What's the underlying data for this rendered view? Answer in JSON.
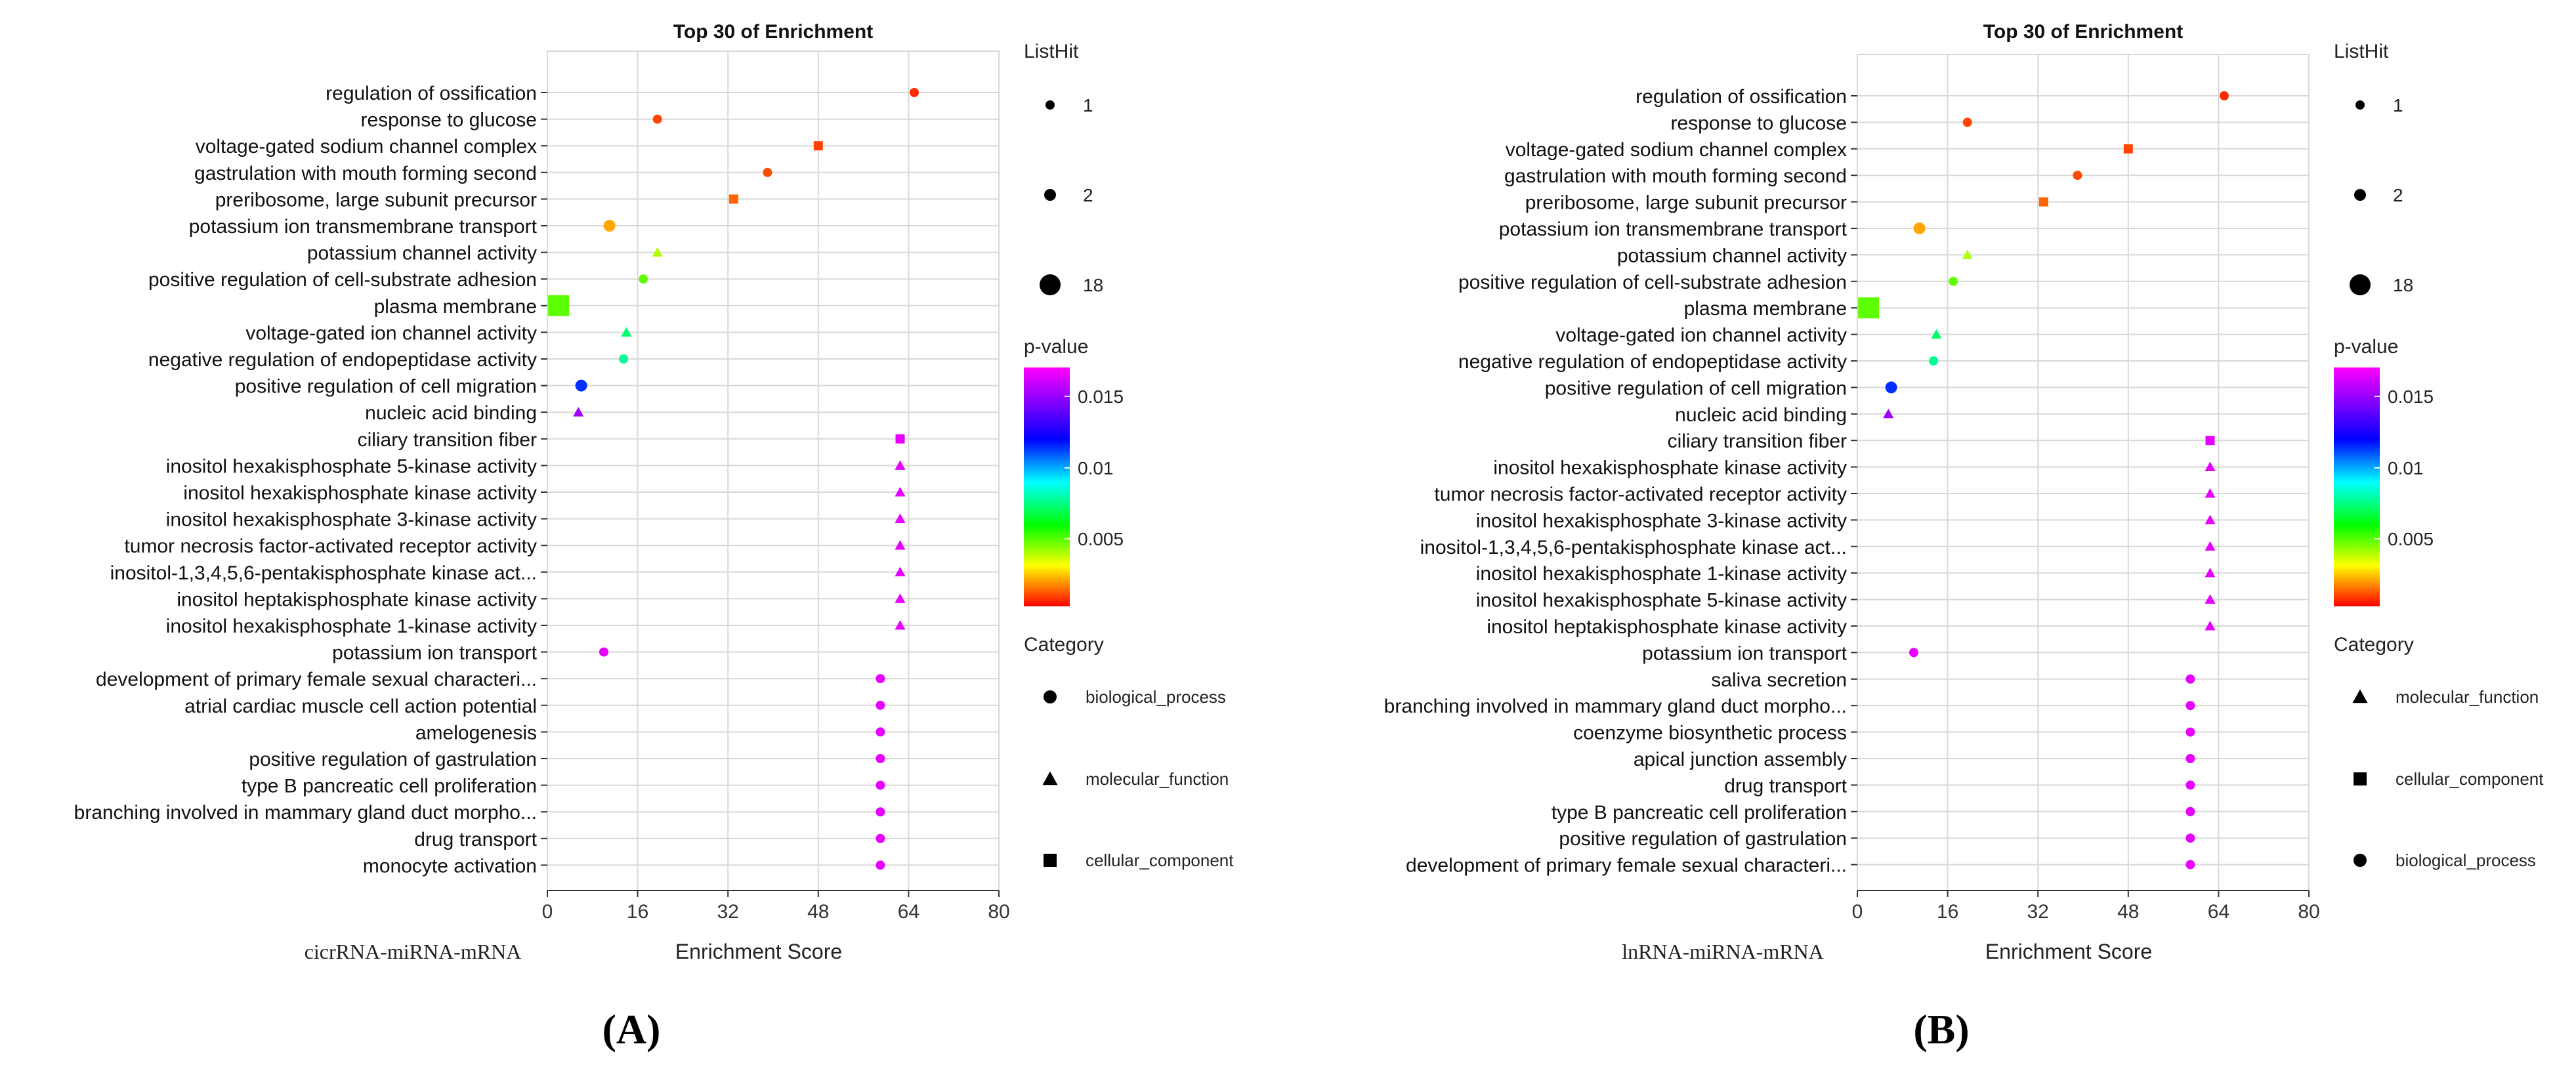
{
  "chart_data": [
    {
      "type": "scatter",
      "panel_label": "(A)",
      "title": "Top 30 of  Enrichment",
      "xlabel": "Enrichment Score",
      "sublabel": "cicrRNA-miRNA-mRNA",
      "xlim": [
        0,
        80
      ],
      "xticks": [
        0,
        16,
        32,
        48,
        64,
        80
      ],
      "grid": true,
      "size_legend": {
        "title": "ListHit",
        "entries": [
          "1",
          "2",
          "18"
        ]
      },
      "color_legend": {
        "title": "p-value",
        "ticks": [
          "0.015",
          "0.01",
          "0.005"
        ]
      },
      "category_legend": {
        "title": "Category",
        "entries": [
          {
            "label": "biological_process",
            "shape": "circle"
          },
          {
            "label": "molecular_function",
            "shape": "triangle"
          },
          {
            "label": "cellular_component",
            "shape": "square"
          }
        ]
      },
      "terms": [
        {
          "term": "regulation of ossification",
          "score": 65,
          "pvalue": 0.0005,
          "hits": 1,
          "category": "biological_process"
        },
        {
          "term": "response to glucose",
          "score": 19.5,
          "pvalue": 0.0008,
          "hits": 1,
          "category": "biological_process"
        },
        {
          "term": "voltage-gated sodium channel complex",
          "score": 48,
          "pvalue": 0.0008,
          "hits": 1,
          "category": "cellular_component"
        },
        {
          "term": "gastrulation with mouth forming second",
          "score": 39,
          "pvalue": 0.0009,
          "hits": 1,
          "category": "biological_process"
        },
        {
          "term": "preribosome, large subunit precursor",
          "score": 33,
          "pvalue": 0.0012,
          "hits": 1,
          "category": "cellular_component"
        },
        {
          "term": "potassium ion transmembrane transport",
          "score": 11,
          "pvalue": 0.002,
          "hits": 2,
          "category": "biological_process"
        },
        {
          "term": "potassium channel activity",
          "score": 19.5,
          "pvalue": 0.004,
          "hits": 1,
          "category": "molecular_function"
        },
        {
          "term": "positive regulation of cell-substrate adhesion",
          "score": 17,
          "pvalue": 0.005,
          "hits": 1,
          "category": "biological_process"
        },
        {
          "term": "plasma membrane",
          "score": 2,
          "pvalue": 0.005,
          "hits": 18,
          "category": "cellular_component"
        },
        {
          "term": "voltage-gated ion channel activity",
          "score": 14,
          "pvalue": 0.0075,
          "hits": 1,
          "category": "molecular_function"
        },
        {
          "term": "negative regulation of endopeptidase activity",
          "score": 13.5,
          "pvalue": 0.008,
          "hits": 1,
          "category": "biological_process"
        },
        {
          "term": "positive regulation of cell migration",
          "score": 6,
          "pvalue": 0.012,
          "hits": 2,
          "category": "biological_process"
        },
        {
          "term": "nucleic acid binding",
          "score": 5.5,
          "pvalue": 0.016,
          "hits": 1,
          "category": "molecular_function"
        },
        {
          "term": "ciliary transition fiber",
          "score": 62.5,
          "pvalue": 0.0175,
          "hits": 1,
          "category": "cellular_component"
        },
        {
          "term": "inositol hexakisphosphate 5-kinase activity",
          "score": 62.5,
          "pvalue": 0.0175,
          "hits": 1,
          "category": "molecular_function"
        },
        {
          "term": "inositol hexakisphosphate kinase activity",
          "score": 62.5,
          "pvalue": 0.0175,
          "hits": 1,
          "category": "molecular_function"
        },
        {
          "term": "inositol hexakisphosphate 3-kinase activity",
          "score": 62.5,
          "pvalue": 0.0175,
          "hits": 1,
          "category": "molecular_function"
        },
        {
          "term": "tumor necrosis factor-activated receptor activity",
          "score": 62.5,
          "pvalue": 0.0175,
          "hits": 1,
          "category": "molecular_function"
        },
        {
          "term": "inositol-1,3,4,5,6-pentakisphosphate kinase act...",
          "score": 62.5,
          "pvalue": 0.0175,
          "hits": 1,
          "category": "molecular_function"
        },
        {
          "term": "inositol heptakisphosphate kinase activity",
          "score": 62.5,
          "pvalue": 0.0175,
          "hits": 1,
          "category": "molecular_function"
        },
        {
          "term": "inositol hexakisphosphate 1-kinase activity",
          "score": 62.5,
          "pvalue": 0.0175,
          "hits": 1,
          "category": "molecular_function"
        },
        {
          "term": "potassium ion transport",
          "score": 10,
          "pvalue": 0.0175,
          "hits": 1,
          "category": "biological_process"
        },
        {
          "term": "development of primary female sexual characteri...",
          "score": 59,
          "pvalue": 0.0175,
          "hits": 1,
          "category": "biological_process"
        },
        {
          "term": "atrial cardiac muscle cell action potential",
          "score": 59,
          "pvalue": 0.0175,
          "hits": 1,
          "category": "biological_process"
        },
        {
          "term": "amelogenesis",
          "score": 59,
          "pvalue": 0.0175,
          "hits": 1,
          "category": "biological_process"
        },
        {
          "term": "positive regulation of gastrulation",
          "score": 59,
          "pvalue": 0.0175,
          "hits": 1,
          "category": "biological_process"
        },
        {
          "term": "type B pancreatic cell proliferation",
          "score": 59,
          "pvalue": 0.0175,
          "hits": 1,
          "category": "biological_process"
        },
        {
          "term": "branching involved in mammary gland duct morpho...",
          "score": 59,
          "pvalue": 0.0175,
          "hits": 1,
          "category": "biological_process"
        },
        {
          "term": "drug transport",
          "score": 59,
          "pvalue": 0.0175,
          "hits": 1,
          "category": "biological_process"
        },
        {
          "term": "monocyte activation",
          "score": 59,
          "pvalue": 0.0175,
          "hits": 1,
          "category": "biological_process"
        }
      ]
    },
    {
      "type": "scatter",
      "panel_label": "(B)",
      "title": "Top 30 of  Enrichment",
      "xlabel": "Enrichment Score",
      "sublabel": "lnRNA-miRNA-mRNA",
      "xlim": [
        0,
        80
      ],
      "xticks": [
        0,
        16,
        32,
        48,
        64,
        80
      ],
      "grid": true,
      "size_legend": {
        "title": "ListHit",
        "entries": [
          "1",
          "2",
          "18"
        ]
      },
      "color_legend": {
        "title": "p-value",
        "ticks": [
          "0.015",
          "0.01",
          "0.005"
        ]
      },
      "category_legend": {
        "title": "Category",
        "entries": [
          {
            "label": "molecular_function",
            "shape": "triangle"
          },
          {
            "label": "cellular_component",
            "shape": "square"
          },
          {
            "label": "biological_process",
            "shape": "circle"
          }
        ]
      },
      "terms": [
        {
          "term": "regulation of ossification",
          "score": 65,
          "pvalue": 0.0005,
          "hits": 1,
          "category": "biological_process"
        },
        {
          "term": "response to glucose",
          "score": 19.5,
          "pvalue": 0.0008,
          "hits": 1,
          "category": "biological_process"
        },
        {
          "term": "voltage-gated sodium channel complex",
          "score": 48,
          "pvalue": 0.0008,
          "hits": 1,
          "category": "cellular_component"
        },
        {
          "term": "gastrulation with mouth forming second",
          "score": 39,
          "pvalue": 0.0009,
          "hits": 1,
          "category": "biological_process"
        },
        {
          "term": "preribosome, large subunit precursor",
          "score": 33,
          "pvalue": 0.0012,
          "hits": 1,
          "category": "cellular_component"
        },
        {
          "term": "potassium ion transmembrane transport",
          "score": 11,
          "pvalue": 0.002,
          "hits": 2,
          "category": "biological_process"
        },
        {
          "term": "potassium channel activity",
          "score": 19.5,
          "pvalue": 0.004,
          "hits": 1,
          "category": "molecular_function"
        },
        {
          "term": "positive regulation of cell-substrate adhesion",
          "score": 17,
          "pvalue": 0.005,
          "hits": 1,
          "category": "biological_process"
        },
        {
          "term": "plasma membrane",
          "score": 2,
          "pvalue": 0.005,
          "hits": 18,
          "category": "cellular_component"
        },
        {
          "term": "voltage-gated ion channel activity",
          "score": 14,
          "pvalue": 0.0075,
          "hits": 1,
          "category": "molecular_function"
        },
        {
          "term": "negative regulation of endopeptidase activity",
          "score": 13.5,
          "pvalue": 0.008,
          "hits": 1,
          "category": "biological_process"
        },
        {
          "term": "positive regulation of cell migration",
          "score": 6,
          "pvalue": 0.012,
          "hits": 2,
          "category": "biological_process"
        },
        {
          "term": "nucleic acid binding",
          "score": 5.5,
          "pvalue": 0.016,
          "hits": 1,
          "category": "molecular_function"
        },
        {
          "term": "ciliary transition fiber",
          "score": 62.5,
          "pvalue": 0.0175,
          "hits": 1,
          "category": "cellular_component"
        },
        {
          "term": "inositol hexakisphosphate kinase activity",
          "score": 62.5,
          "pvalue": 0.0175,
          "hits": 1,
          "category": "molecular_function"
        },
        {
          "term": "tumor necrosis factor-activated receptor activity",
          "score": 62.5,
          "pvalue": 0.0175,
          "hits": 1,
          "category": "molecular_function"
        },
        {
          "term": "inositol hexakisphosphate 3-kinase activity",
          "score": 62.5,
          "pvalue": 0.0175,
          "hits": 1,
          "category": "molecular_function"
        },
        {
          "term": "inositol-1,3,4,5,6-pentakisphosphate kinase act...",
          "score": 62.5,
          "pvalue": 0.0175,
          "hits": 1,
          "category": "molecular_function"
        },
        {
          "term": "inositol hexakisphosphate 1-kinase activity",
          "score": 62.5,
          "pvalue": 0.0175,
          "hits": 1,
          "category": "molecular_function"
        },
        {
          "term": "inositol hexakisphosphate 5-kinase activity",
          "score": 62.5,
          "pvalue": 0.0175,
          "hits": 1,
          "category": "molecular_function"
        },
        {
          "term": "inositol heptakisphosphate kinase activity",
          "score": 62.5,
          "pvalue": 0.0175,
          "hits": 1,
          "category": "molecular_function"
        },
        {
          "term": "potassium ion transport",
          "score": 10,
          "pvalue": 0.0175,
          "hits": 1,
          "category": "biological_process"
        },
        {
          "term": "saliva secretion",
          "score": 59,
          "pvalue": 0.0175,
          "hits": 1,
          "category": "biological_process"
        },
        {
          "term": "branching involved in mammary gland duct morpho...",
          "score": 59,
          "pvalue": 0.0175,
          "hits": 1,
          "category": "biological_process"
        },
        {
          "term": "coenzyme biosynthetic process",
          "score": 59,
          "pvalue": 0.0175,
          "hits": 1,
          "category": "biological_process"
        },
        {
          "term": "apical junction assembly",
          "score": 59,
          "pvalue": 0.0175,
          "hits": 1,
          "category": "biological_process"
        },
        {
          "term": "drug transport",
          "score": 59,
          "pvalue": 0.0175,
          "hits": 1,
          "category": "biological_process"
        },
        {
          "term": "type B pancreatic cell proliferation",
          "score": 59,
          "pvalue": 0.0175,
          "hits": 1,
          "category": "biological_process"
        },
        {
          "term": "positive regulation of gastrulation",
          "score": 59,
          "pvalue": 0.0175,
          "hits": 1,
          "category": "biological_process"
        },
        {
          "term": "development of primary female sexual characteri...",
          "score": 59,
          "pvalue": 0.0175,
          "hits": 1,
          "category": "biological_process"
        }
      ]
    }
  ]
}
